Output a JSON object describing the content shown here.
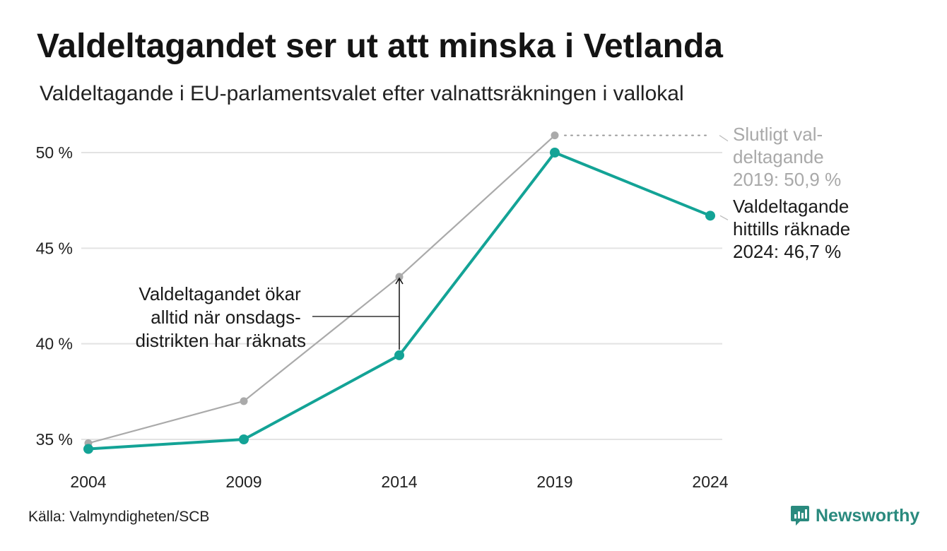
{
  "title": "Valdeltagandet ser ut att minska i Vetlanda",
  "subtitle": "Valdeltagande i EU-parlamentsvalet efter valnattsräkningen i vallokal",
  "source": "Källa: Valmyndigheten/SCB",
  "brand": "Newsworthy",
  "colors": {
    "counted": "#13a396",
    "final": "#aaaaaa",
    "grid": "#e3e3e3"
  },
  "chart_data": {
    "type": "line",
    "x": [
      2004,
      2009,
      2014,
      2019,
      2024
    ],
    "ylim": [
      34,
      51
    ],
    "yticks": [
      35,
      40,
      45,
      50
    ],
    "ytick_labels": [
      "35 %",
      "40 %",
      "45 %",
      "50 %"
    ],
    "xtick_labels": [
      "2004",
      "2009",
      "2014",
      "2019",
      "2024"
    ],
    "grid": true,
    "series": [
      {
        "key": "final",
        "values": [
          34.8,
          37.0,
          43.5,
          50.9,
          null
        ]
      },
      {
        "key": "counted",
        "values": [
          34.5,
          35.0,
          39.4,
          50.0,
          46.7
        ]
      }
    ],
    "annotations": {
      "final": [
        "Slutligt val-",
        "deltagande",
        "2019: 50,9 %"
      ],
      "counted": [
        "Valdeltagande",
        "hittills räknade",
        "2024: 46,7 %"
      ],
      "wednesday": [
        "Valdeltagandet ökar",
        "alltid när onsdags-",
        "distrikten har räknats"
      ]
    }
  }
}
